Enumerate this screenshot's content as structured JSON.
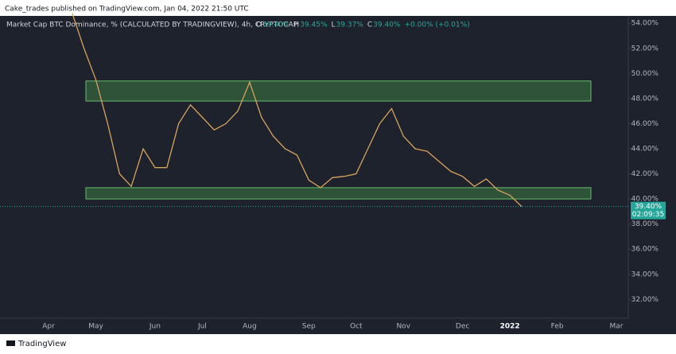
{
  "header": "Cake_trades published on TradingView.com, Jan 04, 2022 21:50 UTC",
  "footer": "TradingView",
  "chart_data": {
    "type": "line",
    "title": "Market Cap BTC Dominance, %  (CALCULATED BY TRADINGVIEW), 4h, CRYPTOCAP",
    "ohlc": [
      {
        "label": "O",
        "value": "39.40%"
      },
      {
        "label": "H",
        "value": "39.45%"
      },
      {
        "label": "L",
        "value": "39.37%"
      },
      {
        "label": "C",
        "value": "39.40%"
      }
    ],
    "change": "+0.00% (+0.01%)",
    "categories": [
      "Apr",
      null,
      null,
      null,
      "May",
      null,
      null,
      null,
      null,
      "Jun",
      null,
      null,
      null,
      "Jul",
      null,
      null,
      null,
      "Aug",
      null,
      null,
      null,
      null,
      "Sep",
      null,
      null,
      null,
      "Oct",
      null,
      null,
      null,
      "Nov",
      null,
      null,
      null,
      null,
      "Dec",
      null,
      null,
      null,
      "2022",
      null,
      null,
      null,
      "Feb",
      null,
      null,
      null,
      null,
      "Mar"
    ],
    "series": [
      {
        "name": "BTC Dominance",
        "color": "#d9a35c",
        "values": [
          null,
          null,
          54.8,
          52,
          49.5,
          46,
          42,
          41,
          44,
          42.5,
          42.5,
          46,
          47.5,
          46.5,
          45.5,
          46,
          47,
          49.3,
          46.5,
          45,
          44,
          43.5,
          41.5,
          40.9,
          41.7,
          41.8,
          42,
          44,
          46,
          47.2,
          45,
          44,
          43.8,
          43,
          42.2,
          41.8,
          41,
          41.6,
          40.7,
          40.3,
          39.4,
          null,
          null,
          null,
          null,
          null,
          null,
          null,
          null
        ]
      }
    ],
    "zones": [
      {
        "from": 47.8,
        "to": 49.4
      },
      {
        "from": 40.0,
        "to": 40.9
      }
    ],
    "last_price": {
      "value": 39.4,
      "label": "39.40%"
    },
    "countdown": "02:09:35",
    "ylim": [
      30.5,
      54.9
    ],
    "yticks": [
      {
        "value": 32,
        "label": "32.00%"
      },
      {
        "value": 34,
        "label": "34.00%"
      },
      {
        "value": 36,
        "label": "36.00%"
      },
      {
        "value": 38,
        "label": "38.00%"
      },
      {
        "value": 40,
        "label": "40.00%"
      },
      {
        "value": 42,
        "label": "42.00%"
      },
      {
        "value": 44,
        "label": "44.00%"
      },
      {
        "value": 46,
        "label": "46.00%"
      },
      {
        "value": 48,
        "label": "48.00%"
      },
      {
        "value": 50,
        "label": "50.00%"
      },
      {
        "value": 52,
        "label": "52.00%"
      },
      {
        "value": 54,
        "label": "54.00%"
      }
    ]
  }
}
